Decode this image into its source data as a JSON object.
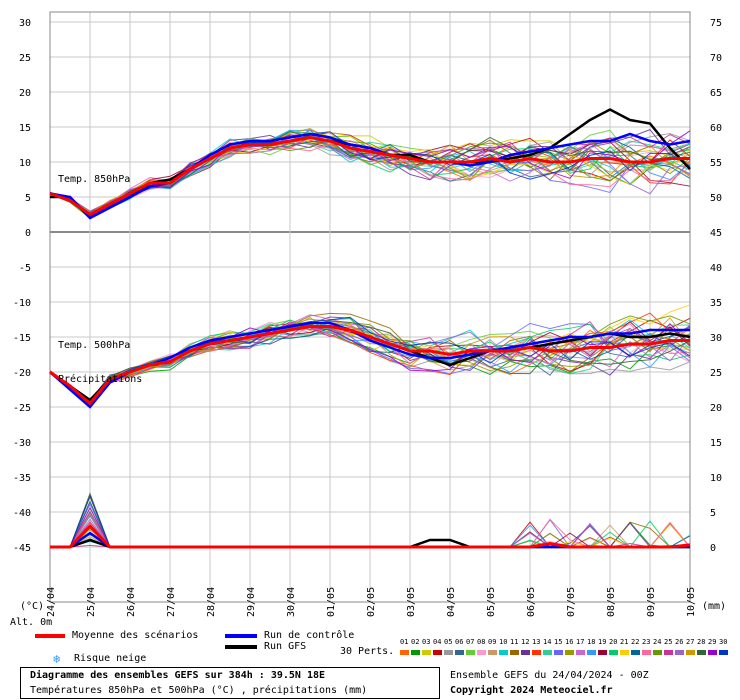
{
  "chart_data": {
    "type": "line",
    "title": "Diagramme des ensembles GEFS sur 384h : 39.5N 18E",
    "subtitle": "Températures 850hPa et 500hPa (°C) , précipitations (mm)",
    "x_ticks": [
      "24/04",
      "25/04",
      "26/04",
      "27/04",
      "28/04",
      "29/04",
      "30/04",
      "01/05",
      "02/05",
      "03/05",
      "04/05",
      "05/05",
      "06/05",
      "07/05",
      "08/05",
      "09/05",
      "10/05"
    ],
    "left_axis": {
      "unit": "(°C)",
      "ticks": [
        30,
        25,
        20,
        15,
        10,
        5,
        0,
        -5,
        -10,
        -15,
        -20,
        -25,
        -30,
        -35,
        -40,
        -45
      ]
    },
    "right_axis": {
      "unit": "(mm)",
      "ticks": [
        75,
        70,
        65,
        60,
        55,
        50,
        45,
        40,
        35,
        30,
        25,
        20,
        15,
        10,
        5,
        0
      ]
    },
    "panel_labels": {
      "t850": "Temp. 850hPa",
      "t500": "Temp. 500hPa",
      "precip": "Précipitations",
      "alt": "Alt. 0m"
    },
    "x_hours": [
      0,
      12,
      24,
      36,
      48,
      60,
      72,
      84,
      96,
      108,
      120,
      132,
      144,
      156,
      168,
      180,
      192,
      204,
      216,
      228,
      240,
      252,
      264,
      276,
      288,
      300,
      312,
      324,
      336,
      348,
      360,
      372,
      384
    ],
    "series": [
      {
        "name": "Moyenne des scénarios",
        "color": "#ff0000",
        "t850": [
          5.5,
          4.5,
          2.5,
          4,
          5.5,
          7,
          7,
          9,
          10.5,
          12,
          12.5,
          12.5,
          13,
          13.5,
          13,
          12,
          11.5,
          11,
          10.5,
          10,
          10,
          10,
          10.5,
          10,
          10.5,
          10,
          10,
          10.5,
          10.5,
          10,
          10,
          10.5,
          10.5
        ],
        "t500": [
          -20,
          -22,
          -24.5,
          -21,
          -20,
          -19,
          -18.5,
          -17,
          -16,
          -15.5,
          -15,
          -14.5,
          -14,
          -13.5,
          -13.5,
          -14,
          -15,
          -16,
          -17,
          -17,
          -17.5,
          -17,
          -17,
          -17,
          -16.5,
          -17,
          -17,
          -16.5,
          -16.5,
          -16,
          -16,
          -15.5,
          -15.5
        ],
        "precip": [
          0,
          0,
          3,
          0,
          0,
          0,
          0,
          0,
          0,
          0,
          0,
          0,
          0,
          0,
          0,
          0,
          0,
          0,
          0,
          0,
          0,
          0,
          0,
          0,
          0,
          0.5,
          0,
          0,
          0,
          0,
          0,
          0,
          0.3
        ]
      },
      {
        "name": "Run de contrôle",
        "color": "#0000ff",
        "t850": [
          5.5,
          5,
          2,
          3.5,
          5,
          6.5,
          7,
          9,
          11,
          12.5,
          13,
          13,
          13.5,
          14,
          13.5,
          12.5,
          12,
          11,
          10.5,
          10,
          10,
          9.5,
          10,
          11,
          11.5,
          12,
          12.5,
          13,
          13,
          14,
          13,
          12.5,
          13
        ],
        "t500": [
          -20,
          -22.5,
          -25,
          -21.5,
          -20,
          -19,
          -18,
          -16.5,
          -15.5,
          -15,
          -14.5,
          -14,
          -13.5,
          -13,
          -13,
          -14,
          -15.5,
          -16.5,
          -17.5,
          -18,
          -18,
          -17.5,
          -17,
          -16.5,
          -16,
          -15.5,
          -15,
          -15,
          -14.5,
          -14.5,
          -14,
          -14,
          -14
        ],
        "precip": [
          0,
          0,
          2,
          0,
          0,
          0,
          0,
          0,
          0,
          0,
          0,
          0,
          0,
          0,
          0,
          0,
          0,
          0,
          0,
          0,
          0,
          0,
          0,
          0,
          0,
          0,
          0,
          0,
          0,
          0,
          0,
          0,
          0
        ]
      },
      {
        "name": "Run GFS",
        "color": "#000000",
        "t850": [
          5,
          5,
          2,
          3.5,
          5,
          7,
          7.5,
          9,
          10.5,
          12,
          12.5,
          12.5,
          13,
          13.5,
          13,
          12.5,
          12,
          11,
          11,
          10,
          10,
          10,
          10,
          10.5,
          11,
          12,
          14,
          16,
          17.5,
          16,
          15.5,
          12,
          9
        ],
        "t500": [
          -20,
          -22,
          -24,
          -21,
          -20,
          -19,
          -18.5,
          -17,
          -16,
          -15.5,
          -15,
          -14.5,
          -14,
          -13.5,
          -13.5,
          -14,
          -15,
          -16,
          -17,
          -18,
          -19,
          -18,
          -17,
          -17,
          -16.5,
          -16,
          -15.5,
          -15,
          -14.5,
          -15,
          -15,
          -14.5,
          -15
        ],
        "precip": [
          0,
          0,
          1,
          0,
          0,
          0,
          0,
          0,
          0,
          0,
          0,
          0,
          0,
          0,
          0,
          0,
          0,
          0,
          0,
          1,
          1,
          0,
          0,
          0,
          0,
          0,
          0,
          0,
          0,
          0,
          0,
          0,
          0
        ]
      }
    ],
    "ensemble_members": 30,
    "grid": true
  },
  "legend": {
    "mean": "Moyenne des scénarios",
    "control": "Run de contrôle",
    "gfs": "Run GFS",
    "snow": "Risque neige",
    "perts": "30 Perts.",
    "pert_numbers": [
      "01",
      "02",
      "03",
      "04",
      "05",
      "06",
      "07",
      "08",
      "09",
      "10",
      "11",
      "12",
      "13",
      "14",
      "15",
      "16",
      "17",
      "18",
      "19",
      "20",
      "21",
      "22",
      "23",
      "24",
      "25",
      "26",
      "27",
      "28",
      "29",
      "30"
    ],
    "pert_colors": [
      "#ff6600",
      "#009900",
      "#cccc00",
      "#cc0000",
      "#999999",
      "#336699",
      "#66cc33",
      "#ff99cc",
      "#cc9966",
      "#00cccc",
      "#996600",
      "#663399",
      "#ff3300",
      "#33cc99",
      "#6666ff",
      "#999900",
      "#cc66cc",
      "#3399ff",
      "#990033",
      "#00cc66",
      "#ffcc00",
      "#006699",
      "#ff6699",
      "#669900",
      "#cc3399",
      "#9966cc",
      "#cc9900",
      "#336633",
      "#9900cc",
      "#0033cc"
    ]
  },
  "footer": {
    "title": "Diagramme des ensembles GEFS sur 384h : 39.5N 18E",
    "subtitle": "Températures 850hPa et 500hPa (°C) , précipitations (mm)",
    "run": "Ensemble GEFS du 24/04/2024 - 00Z",
    "copyright": "Copyright 2024 Meteociel.fr"
  }
}
